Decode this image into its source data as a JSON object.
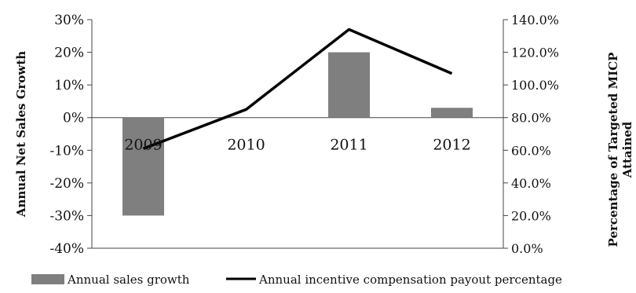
{
  "chart_data": {
    "type": "bar",
    "categories": [
      "2009",
      "2010",
      "2011",
      "2012"
    ],
    "series": [
      {
        "name": "Annual sales growth",
        "type": "bar",
        "axis": "left",
        "values": [
          -30,
          null,
          20,
          3
        ],
        "color": "#7f7f7f"
      },
      {
        "name": "Annual incentive compensation payout percentage",
        "type": "line",
        "axis": "right",
        "values": [
          61,
          85,
          134,
          107
        ],
        "color": "#000000"
      }
    ],
    "ylabel": "Annual Net Sales Growth",
    "y2label": [
      "Percentage of Targeted MICP",
      "Attained"
    ],
    "ylim": [
      -40,
      30
    ],
    "y2lim": [
      0,
      140
    ],
    "yticks": [
      "30%",
      "20%",
      "10%",
      "0%",
      "-10%",
      "-20%",
      "-30%",
      "-40%"
    ],
    "y2ticks": [
      "140.0%",
      "120.0%",
      "100.0%",
      "80.0%",
      "60.0%",
      "40.0%",
      "20.0%",
      "0.0%"
    ],
    "legend_position": "bottom"
  }
}
